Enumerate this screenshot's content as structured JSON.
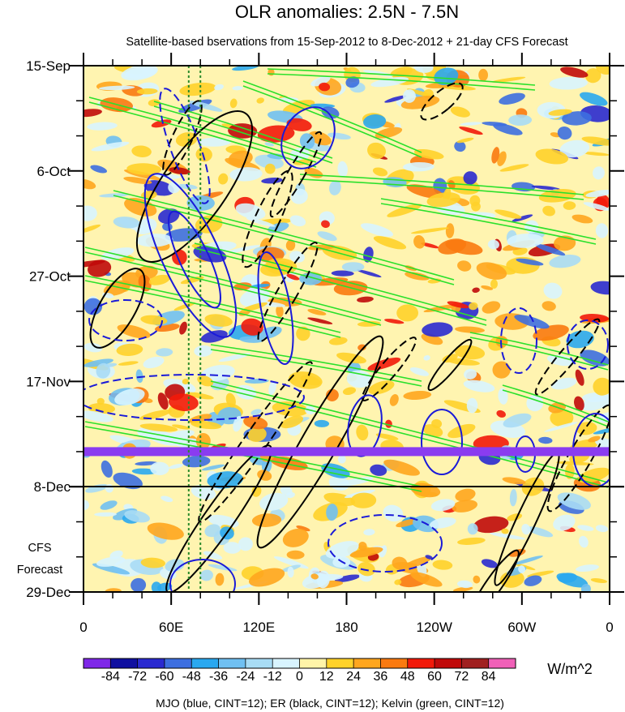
{
  "chart_data": {
    "type": "heatmap",
    "title": "OLR anomalies: 2.5N - 7.5N",
    "subtitle": "Satellite-based bservations from 15-Sep-2012 to 8-Dec-2012 + 21-day CFS Forecast",
    "x_ticks": [
      "0",
      "60E",
      "120E",
      "180",
      "120W",
      "60W",
      "0"
    ],
    "x_lon_range": [
      0,
      360
    ],
    "y_ticks": [
      "15-Sep",
      "6-Oct",
      "27-Oct",
      "17-Nov",
      "8-Dec",
      "29-Dec"
    ],
    "y_date_range": [
      "2012-09-15",
      "2012-12-29"
    ],
    "observation_end": "8-Dec",
    "forecast_label": [
      "CFS",
      "Forecast"
    ],
    "colorbar": {
      "levels": [
        "-84",
        "-72",
        "-60",
        "-48",
        "-36",
        "-24",
        "-12",
        "0",
        "12",
        "24",
        "36",
        "48",
        "60",
        "72",
        "84"
      ],
      "colors": [
        "#7f28e8",
        "#1010a0",
        "#2a2ad0",
        "#3d6fe0",
        "#2aa8f0",
        "#70c0f2",
        "#a8dcf5",
        "#d8f4ff",
        "#fff4a8",
        "#ffd22a",
        "#ffa61e",
        "#fa7a10",
        "#f21a0a",
        "#c00a0a",
        "#a02020",
        "#f060b8"
      ],
      "units": "W/m^2"
    },
    "footer": "MJO (blue, CINT=12); ER (black, CINT=12); Kelvin (green, CINT=12)",
    "series_colors": {
      "mjo": "#1a1ad8",
      "er": "#000000",
      "kelvin": "#2be02b"
    },
    "highlight_band_date": "2012-12-01",
    "highlight_band_color": "#8a3cf0",
    "reference_lon_lines": [
      72,
      80
    ]
  }
}
